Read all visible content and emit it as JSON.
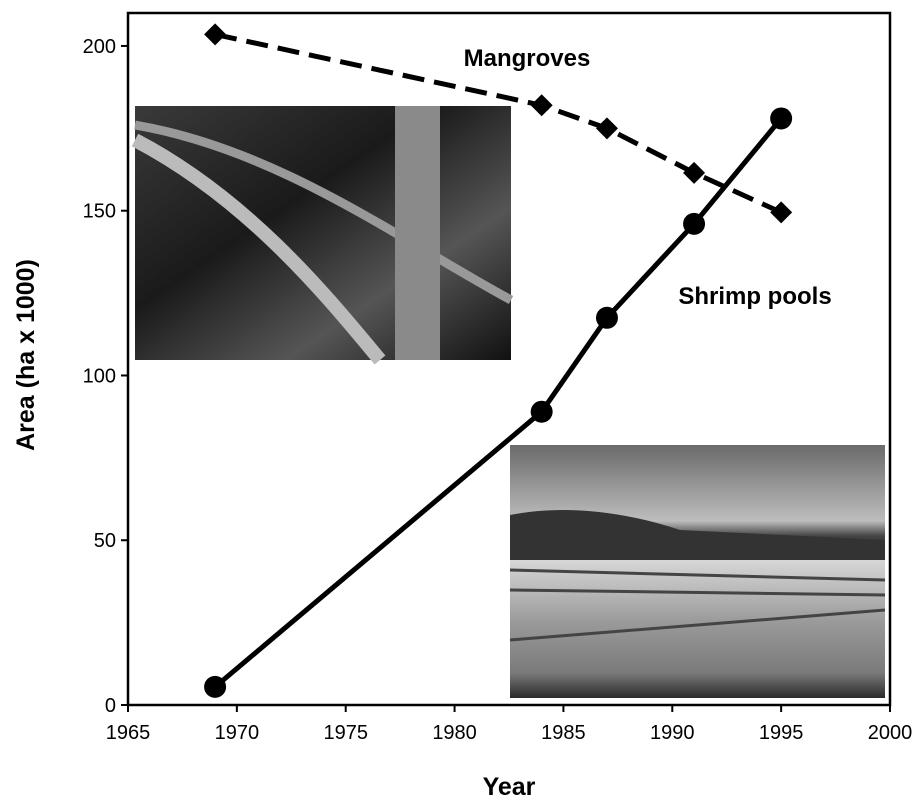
{
  "chart_data": {
    "type": "line",
    "xlabel": "Year",
    "ylabel": "Area (ha x 1000)",
    "x": [
      1969,
      1984,
      1987,
      1991,
      1995
    ],
    "series": [
      {
        "name": "Mangroves",
        "color": "#000000",
        "dashed": true,
        "marker": "diamond",
        "values": [
          203.5,
          182,
          175,
          161.5,
          149.5
        ]
      },
      {
        "name": "Shrimp pools",
        "color": "#000000",
        "dashed": false,
        "marker": "circle",
        "values": [
          5.5,
          89,
          117.5,
          146,
          178
        ]
      }
    ],
    "xlim": [
      1965,
      2000
    ],
    "xticks": [
      1965,
      1970,
      1975,
      1980,
      1985,
      1990,
      1995,
      2000
    ],
    "ylim": [
      0,
      210
    ],
    "yticks": [
      0,
      50,
      100,
      150,
      200
    ]
  }
}
